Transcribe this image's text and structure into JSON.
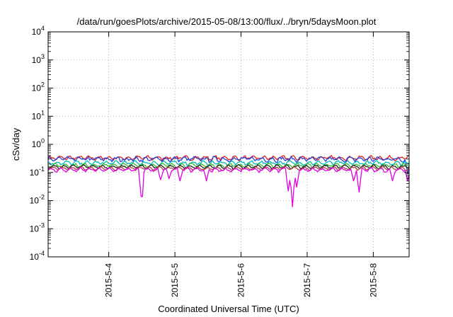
{
  "chart_data": {
    "type": "line",
    "title": "/data/run/goesPlots/archive/2015-05-08/13:00/flux/../bryn/5daysMoon.plot",
    "xlabel": "Coordinated Universal Time (UTC)",
    "ylabel": "cSv/day",
    "yscale": "log",
    "ylim": [
      0.0001,
      10000
    ],
    "xlim": [
      "2015-05-03 02:00",
      "2015-05-08 13:00"
    ],
    "grid": true,
    "x_ticks": [
      {
        "date": "2015-05-04 00:00",
        "label": "2015-5-4"
      },
      {
        "date": "2015-05-05 00:00",
        "label": "2015-5-5"
      },
      {
        "date": "2015-05-06 00:00",
        "label": "2015-5-6"
      },
      {
        "date": "2015-05-07 00:00",
        "label": "2015-5-7"
      },
      {
        "date": "2015-05-08 00:00",
        "label": "2015-5-8"
      }
    ],
    "y_ticks": [
      {
        "value": 0.0001,
        "base": "10",
        "exp": "-4"
      },
      {
        "value": 0.001,
        "base": "10",
        "exp": "-3"
      },
      {
        "value": 0.01,
        "base": "10",
        "exp": "-2"
      },
      {
        "value": 0.1,
        "base": "10",
        "exp": "-1"
      },
      {
        "value": 1,
        "base": "10",
        "exp": "0"
      },
      {
        "value": 10,
        "base": "10",
        "exp": "1"
      },
      {
        "value": 100,
        "base": "10",
        "exp": "2"
      },
      {
        "value": 1000,
        "base": "10",
        "exp": "3"
      },
      {
        "value": 10000,
        "base": "10",
        "exp": "4"
      }
    ],
    "series": [
      {
        "color": "#e0201a",
        "level": 0.33,
        "noise": 0.11,
        "dips": []
      },
      {
        "color": "#2040e0",
        "level": 0.3,
        "noise": 0.14,
        "dips": [
          [
            "2015-05-08 12:30",
            0.09
          ]
        ]
      },
      {
        "color": "#00b8b8",
        "level": 0.22,
        "noise": 0.1,
        "dips": []
      },
      {
        "color": "#30c030",
        "level": 0.18,
        "noise": 0.08,
        "dips": []
      },
      {
        "color": "#202020",
        "level": 0.16,
        "noise": 0.07,
        "dips": []
      },
      {
        "color": "#b04040",
        "level": 0.14,
        "noise": 0.07,
        "dips": []
      },
      {
        "color": "#e000e0",
        "level": 0.125,
        "noise": 0.09,
        "dips": [
          [
            "2015-05-04 12:00",
            0.014
          ],
          [
            "2015-05-04 19:00",
            0.055
          ],
          [
            "2015-05-04 22:00",
            0.06
          ],
          [
            "2015-05-05 02:00",
            0.05
          ],
          [
            "2015-05-05 11:30",
            0.05
          ],
          [
            "2015-05-06 17:00",
            0.022
          ],
          [
            "2015-05-06 18:30",
            0.006
          ],
          [
            "2015-05-06 20:00",
            0.03
          ],
          [
            "2015-05-07 17:00",
            0.05
          ],
          [
            "2015-05-07 19:00",
            0.02
          ],
          [
            "2015-05-08 07:00",
            0.05
          ],
          [
            "2015-05-08 12:30",
            0.05
          ]
        ]
      }
    ]
  }
}
